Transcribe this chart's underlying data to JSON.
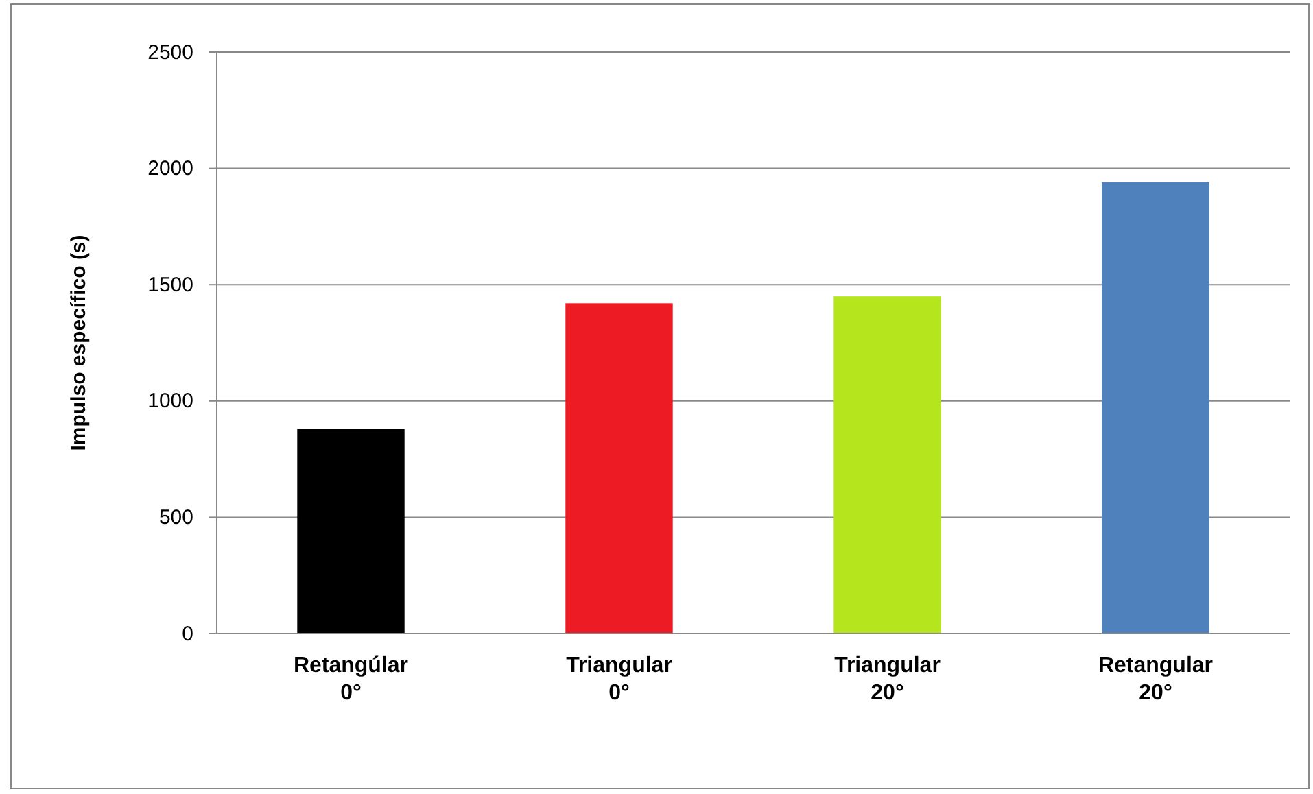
{
  "chart_data": {
    "type": "bar",
    "ylabel": "Impulso específico  (s)",
    "categories": [
      "Retangúlar\n0°",
      "Triangular\n0°",
      "Triangular\n20°",
      "Retangular\n20°"
    ],
    "values": [
      880,
      1420,
      1450,
      1940
    ],
    "colors": [
      "#000000",
      "#ed1c24",
      "#b5e61d",
      "#4f81bd"
    ],
    "ylim": [
      0,
      2500
    ],
    "yticks": [
      0,
      500,
      1000,
      1500,
      2000,
      2500
    ],
    "grid": "y"
  }
}
